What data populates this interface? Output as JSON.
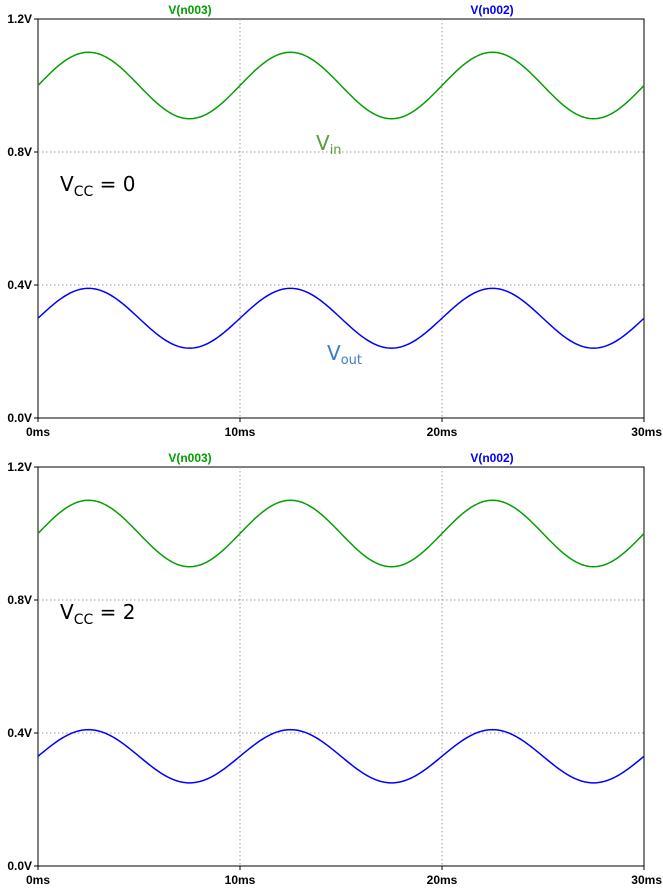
{
  "chart_data": [
    {
      "type": "line",
      "x_range_ms": [
        0,
        30
      ],
      "ylim": [
        0,
        1.2
      ],
      "x_ticks": [
        "0ms",
        "10ms",
        "20ms",
        "30ms"
      ],
      "y_ticks": [
        "0.0V",
        "0.4V",
        "0.8V",
        "1.2V"
      ],
      "grid": true,
      "annotation": {
        "main": "V",
        "sub": "CC",
        "suffix": " = 0"
      },
      "series_labels": [
        {
          "main": "V",
          "sub": "in",
          "color": "#5a9e3c"
        },
        {
          "main": "V",
          "sub": "out",
          "color": "#3a7fc4"
        }
      ],
      "series": [
        {
          "name": "V(n003)",
          "color": "#00a000",
          "offset": 1.0,
          "amplitude": 0.1,
          "period_ms": 10
        },
        {
          "name": "V(n002)",
          "color": "#0000ff",
          "offset": 0.3,
          "amplitude": 0.09,
          "period_ms": 10
        }
      ]
    },
    {
      "type": "line",
      "x_range_ms": [
        0,
        30
      ],
      "ylim": [
        0,
        1.2
      ],
      "x_ticks": [
        "0ms",
        "10ms",
        "20ms",
        "30ms"
      ],
      "y_ticks": [
        "0.0V",
        "0.4V",
        "0.8V",
        "1.2V"
      ],
      "grid": true,
      "annotation": {
        "main": "V",
        "sub": "CC",
        "suffix": " = 2"
      },
      "series_labels": [],
      "series": [
        {
          "name": "V(n003)",
          "color": "#00a000",
          "offset": 1.0,
          "amplitude": 0.1,
          "period_ms": 10
        },
        {
          "name": "V(n002)",
          "color": "#0000ff",
          "offset": 0.33,
          "amplitude": 0.08,
          "period_ms": 10
        }
      ]
    }
  ]
}
